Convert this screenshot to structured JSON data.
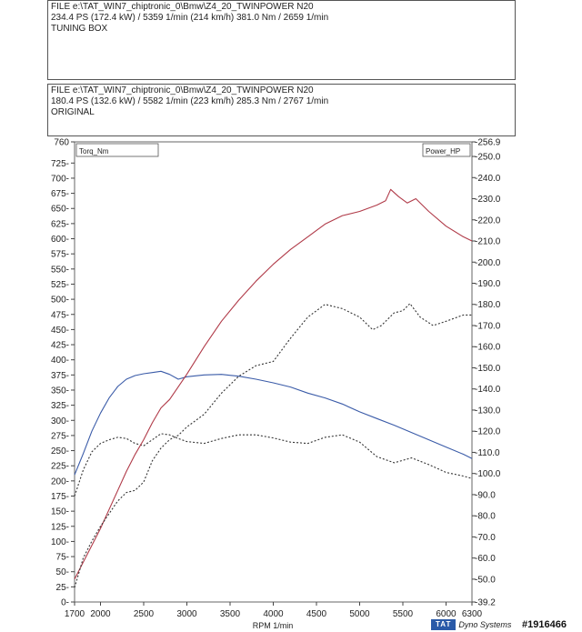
{
  "header_tuned": {
    "file": "FILE  e:\\TAT_WIN7_chiptronic_0\\Bmw\\Z4_20_TWINPOWER N20",
    "stats": "234.4 PS  (172.4 kW) / 5359 1/min (214 km/h)     381.0 Nm / 2659 1/min",
    "label": "TUNING BOX"
  },
  "header_original": {
    "file": "FILE  e:\\TAT_WIN7_chiptronic_0\\Bmw\\Z4_20_TWINPOWER N20",
    "stats": "180.4 PS  (132.6 kW) / 5582 1/min (223 km/h)     285.3 Nm / 2767 1/min",
    "label": "ORIGINAL"
  },
  "brand": {
    "logo": "TAT",
    "name": "Dyno Systems"
  },
  "watermark": "#1916466",
  "chart_data": {
    "type": "line",
    "xlabel": "RPM  1/min",
    "xlim": [
      1700,
      6300
    ],
    "x_ticks": [
      {
        "v": 1700,
        "t": "1700"
      },
      {
        "v": 2000,
        "t": "2000"
      },
      {
        "v": 2500,
        "t": "2500"
      },
      {
        "v": 3000,
        "t": "3000"
      },
      {
        "v": 3500,
        "t": "3500"
      },
      {
        "v": 4000,
        "t": "4000"
      },
      {
        "v": 4500,
        "t": "4500"
      },
      {
        "v": 5000,
        "t": "5000"
      },
      {
        "v": 5500,
        "t": "5500"
      },
      {
        "v": 6000,
        "t": "6000"
      },
      {
        "v": 6300,
        "t": "6300"
      }
    ],
    "y_left": {
      "label": "Torq_Nm",
      "lim": [
        0,
        760
      ],
      "ticks": [
        {
          "v": 0,
          "t": "0"
        },
        {
          "v": 25,
          "t": "25"
        },
        {
          "v": 50,
          "t": "50"
        },
        {
          "v": 75,
          "t": "75"
        },
        {
          "v": 100,
          "t": "100"
        },
        {
          "v": 125,
          "t": "125"
        },
        {
          "v": 150,
          "t": "150"
        },
        {
          "v": 175,
          "t": "175"
        },
        {
          "v": 200,
          "t": "200"
        },
        {
          "v": 225,
          "t": "225"
        },
        {
          "v": 250,
          "t": "250"
        },
        {
          "v": 275,
          "t": "275"
        },
        {
          "v": 300,
          "t": "300"
        },
        {
          "v": 325,
          "t": "325"
        },
        {
          "v": 350,
          "t": "350"
        },
        {
          "v": 375,
          "t": "375"
        },
        {
          "v": 400,
          "t": "400"
        },
        {
          "v": 425,
          "t": "425"
        },
        {
          "v": 450,
          "t": "450"
        },
        {
          "v": 475,
          "t": "475"
        },
        {
          "v": 500,
          "t": "500"
        },
        {
          "v": 525,
          "t": "525"
        },
        {
          "v": 550,
          "t": "550"
        },
        {
          "v": 575,
          "t": "575"
        },
        {
          "v": 600,
          "t": "600"
        },
        {
          "v": 625,
          "t": "625"
        },
        {
          "v": 650,
          "t": "650"
        },
        {
          "v": 675,
          "t": "675"
        },
        {
          "v": 700,
          "t": "700"
        },
        {
          "v": 725,
          "t": "725"
        },
        {
          "v": 760,
          "t": "760"
        }
      ]
    },
    "y_right": {
      "label": "Power_HP",
      "lim": [
        39.2,
        256.9
      ],
      "ticks": [
        {
          "v": 39.2,
          "t": "39.2"
        },
        {
          "v": 50,
          "t": "50.0"
        },
        {
          "v": 60,
          "t": "60.0"
        },
        {
          "v": 70,
          "t": "70.0"
        },
        {
          "v": 80,
          "t": "80.0"
        },
        {
          "v": 90,
          "t": "90.0"
        },
        {
          "v": 100,
          "t": "100.0"
        },
        {
          "v": 110,
          "t": "110.0"
        },
        {
          "v": 120,
          "t": "120.0"
        },
        {
          "v": 130,
          "t": "130.0"
        },
        {
          "v": 140,
          "t": "140.0"
        },
        {
          "v": 150,
          "t": "150.0"
        },
        {
          "v": 160,
          "t": "160.0"
        },
        {
          "v": 170,
          "t": "170.0"
        },
        {
          "v": 180,
          "t": "180.0"
        },
        {
          "v": 190,
          "t": "190.0"
        },
        {
          "v": 200,
          "t": "200.0"
        },
        {
          "v": 210,
          "t": "210.0"
        },
        {
          "v": 220,
          "t": "220.0"
        },
        {
          "v": 230,
          "t": "230.0"
        },
        {
          "v": 240,
          "t": "240.0"
        },
        {
          "v": 250,
          "t": "250.0"
        },
        {
          "v": 256.9,
          "t": "256.9"
        }
      ]
    },
    "series": [
      {
        "axis": "left",
        "color": "#3a5ba8",
        "dash": false,
        "x": [
          1700,
          1800,
          1900,
          2000,
          2100,
          2200,
          2300,
          2400,
          2500,
          2600,
          2700,
          2800,
          2900,
          3000,
          3200,
          3400,
          3600,
          3800,
          4000,
          4200,
          4400,
          4600,
          4800,
          5000,
          5200,
          5400,
          5600,
          5800,
          6000,
          6200,
          6300
        ],
        "y": [
          210,
          245,
          282,
          312,
          337,
          356,
          368,
          374,
          377,
          379,
          381,
          376,
          368,
          372,
          375,
          376,
          373,
          368,
          362,
          355,
          345,
          337,
          327,
          314,
          303,
          292,
          280,
          268,
          256,
          244,
          237
        ]
      },
      {
        "axis": "left",
        "color": "#333333",
        "dash": true,
        "x": [
          1700,
          1800,
          1900,
          2000,
          2100,
          2200,
          2300,
          2400,
          2500,
          2600,
          2700,
          2800,
          2900,
          3000,
          3200,
          3400,
          3600,
          3800,
          4000,
          4200,
          4400,
          4600,
          4800,
          5000,
          5200,
          5400,
          5600,
          5800,
          6000,
          6200,
          6300
        ],
        "y": [
          175,
          218,
          248,
          262,
          268,
          272,
          270,
          262,
          258,
          268,
          278,
          276,
          270,
          265,
          262,
          270,
          276,
          276,
          271,
          264,
          262,
          272,
          276,
          264,
          240,
          230,
          238,
          227,
          214,
          208,
          204
        ]
      },
      {
        "axis": "right",
        "color": "#b03a48",
        "dash": false,
        "x": [
          1700,
          1800,
          1900,
          2000,
          2100,
          2200,
          2300,
          2400,
          2500,
          2600,
          2700,
          2800,
          2900,
          3000,
          3200,
          3400,
          3600,
          3800,
          4000,
          4200,
          4400,
          4600,
          4800,
          5000,
          5200,
          5300,
          5359,
          5450,
          5550,
          5650,
          5800,
          6000,
          6200,
          6300
        ],
        "y": [
          50,
          58,
          66,
          74,
          83,
          92,
          101,
          109,
          116,
          124,
          131,
          135,
          141,
          147,
          160,
          172,
          182,
          191,
          199,
          206,
          212,
          218,
          222,
          224,
          227,
          229,
          234.4,
          231,
          228,
          230,
          224,
          217,
          212,
          210
        ]
      },
      {
        "axis": "right",
        "color": "#333333",
        "dash": true,
        "x": [
          1700,
          1800,
          1900,
          2000,
          2100,
          2200,
          2300,
          2400,
          2500,
          2600,
          2700,
          2800,
          2900,
          3000,
          3200,
          3400,
          3600,
          3800,
          4000,
          4200,
          4400,
          4600,
          4800,
          5000,
          5150,
          5250,
          5400,
          5500,
          5582,
          5700,
          5850,
          6000,
          6200,
          6300
        ],
        "y": [
          46,
          60,
          68,
          75,
          81,
          87,
          91,
          92,
          96,
          106,
          112,
          116,
          118,
          122,
          128,
          138,
          146,
          151,
          153,
          164,
          174,
          180,
          178,
          174,
          168,
          170,
          176,
          177,
          180.4,
          174,
          170,
          172,
          175,
          175
        ]
      }
    ]
  }
}
